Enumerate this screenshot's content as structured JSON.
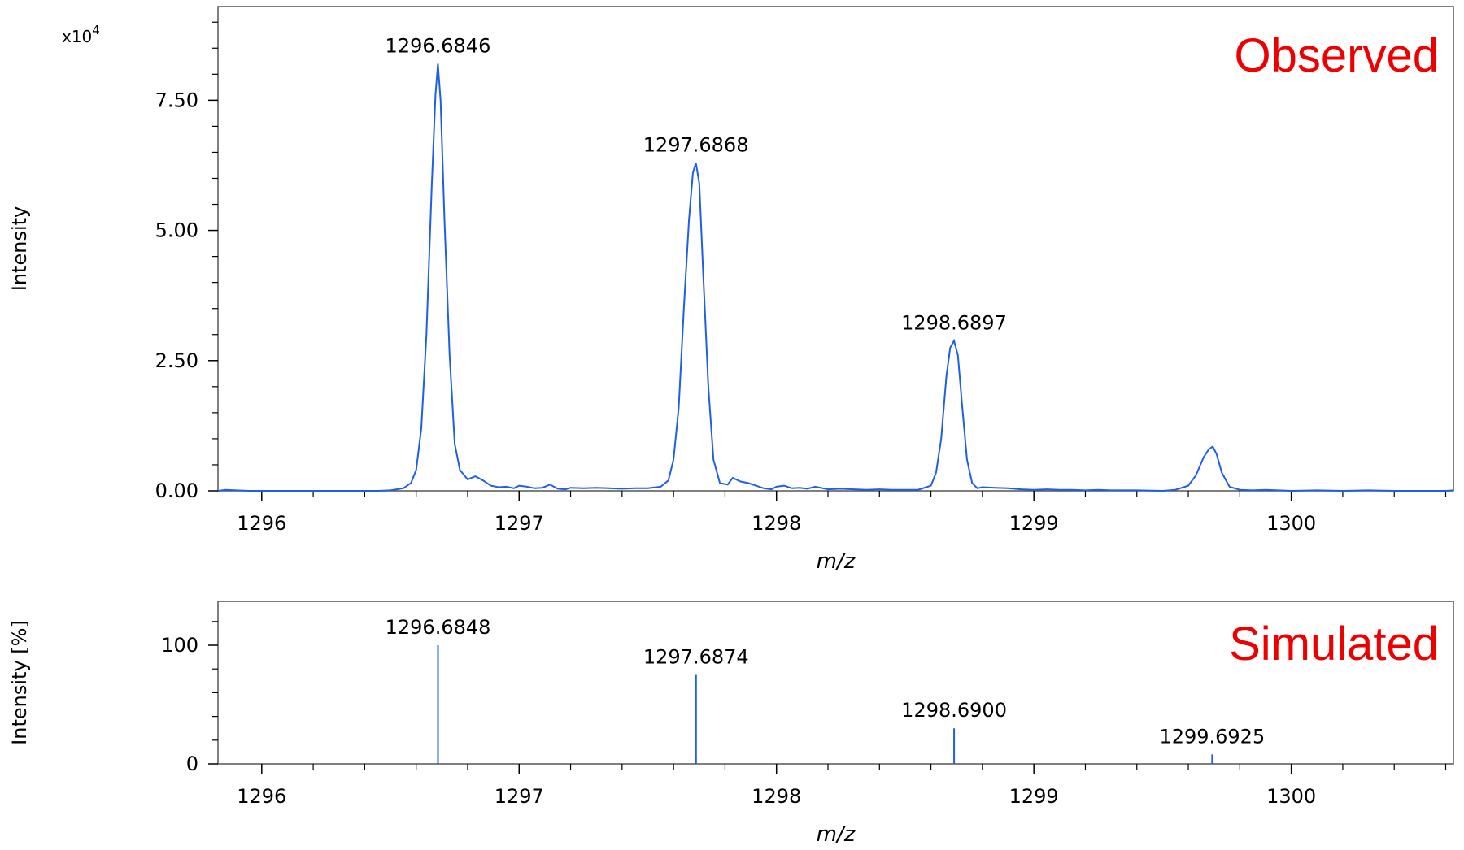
{
  "chart_data": [
    {
      "type": "line",
      "panel_label": "Observed",
      "xlabel": "m/z",
      "ylabel": "Intensity",
      "y_multiplier_label": "x10",
      "y_multiplier_exponent": "4",
      "xlim": [
        1295.83,
        1300.63
      ],
      "ylim": [
        0,
        9.3
      ],
      "x_ticks": [
        1296,
        1297,
        1298,
        1299,
        1300
      ],
      "x_tick_labels": [
        "1296",
        "1297",
        "1298",
        "1299",
        "1300"
      ],
      "y_ticks": [
        0,
        2.5,
        5.0,
        7.5
      ],
      "y_tick_labels": [
        "0.00",
        "2.50",
        "5.00",
        "7.50"
      ],
      "grid": false,
      "line_color": "#1f5fe6",
      "peak_labels": [
        {
          "x": 1296.6846,
          "y": 8.2,
          "text": "1296.6846"
        },
        {
          "x": 1297.6868,
          "y": 6.3,
          "text": "1297.6868"
        },
        {
          "x": 1298.6897,
          "y": 2.88,
          "text": "1298.6897"
        }
      ],
      "series": [
        {
          "x": [
            1295.83,
            1295.86,
            1295.9,
            1295.95,
            1296.0,
            1296.05,
            1296.1,
            1296.15,
            1296.2,
            1296.25,
            1296.3,
            1296.35,
            1296.4,
            1296.45,
            1296.5,
            1296.55,
            1296.58,
            1296.6,
            1296.62,
            1296.64,
            1296.66,
            1296.675,
            1296.6846,
            1296.695,
            1296.71,
            1296.73,
            1296.75,
            1296.77,
            1296.8,
            1296.83,
            1296.86,
            1296.89,
            1296.92,
            1296.95,
            1296.98,
            1297.0,
            1297.03,
            1297.06,
            1297.09,
            1297.12,
            1297.15,
            1297.18,
            1297.2,
            1297.25,
            1297.3,
            1297.35,
            1297.4,
            1297.45,
            1297.5,
            1297.55,
            1297.58,
            1297.6,
            1297.62,
            1297.64,
            1297.66,
            1297.675,
            1297.6868,
            1297.7,
            1297.715,
            1297.735,
            1297.755,
            1297.78,
            1297.81,
            1297.83,
            1297.86,
            1297.89,
            1297.92,
            1297.95,
            1297.98,
            1298.0,
            1298.03,
            1298.06,
            1298.09,
            1298.12,
            1298.15,
            1298.2,
            1298.25,
            1298.3,
            1298.35,
            1298.4,
            1298.45,
            1298.5,
            1298.55,
            1298.6,
            1298.62,
            1298.64,
            1298.66,
            1298.675,
            1298.6897,
            1298.705,
            1298.72,
            1298.74,
            1298.76,
            1298.78,
            1298.8,
            1298.85,
            1298.9,
            1298.95,
            1299.0,
            1299.05,
            1299.1,
            1299.15,
            1299.2,
            1299.25,
            1299.3,
            1299.4,
            1299.5,
            1299.55,
            1299.6,
            1299.63,
            1299.66,
            1299.68,
            1299.695,
            1299.71,
            1299.73,
            1299.76,
            1299.8,
            1299.85,
            1299.9,
            1300.0,
            1300.1,
            1300.2,
            1300.3,
            1300.4,
            1300.5,
            1300.6,
            1300.63
          ],
          "y": [
            0.0,
            0.02,
            0.01,
            0.0,
            0.0,
            0.0,
            0.0,
            0.0,
            0.0,
            0.0,
            0.0,
            0.0,
            0.0,
            0.0,
            0.01,
            0.05,
            0.15,
            0.4,
            1.2,
            3.0,
            5.8,
            7.6,
            8.2,
            7.5,
            5.2,
            2.6,
            0.9,
            0.4,
            0.22,
            0.28,
            0.2,
            0.1,
            0.07,
            0.08,
            0.05,
            0.1,
            0.08,
            0.05,
            0.06,
            0.12,
            0.04,
            0.03,
            0.06,
            0.05,
            0.06,
            0.05,
            0.04,
            0.05,
            0.05,
            0.08,
            0.2,
            0.6,
            1.6,
            3.5,
            5.2,
            6.1,
            6.3,
            5.9,
            4.2,
            2.0,
            0.6,
            0.15,
            0.12,
            0.25,
            0.18,
            0.15,
            0.1,
            0.05,
            0.03,
            0.08,
            0.1,
            0.05,
            0.06,
            0.04,
            0.08,
            0.03,
            0.04,
            0.03,
            0.02,
            0.03,
            0.02,
            0.02,
            0.02,
            0.1,
            0.35,
            1.0,
            2.2,
            2.75,
            2.88,
            2.6,
            1.7,
            0.6,
            0.15,
            0.05,
            0.07,
            0.06,
            0.05,
            0.03,
            0.02,
            0.03,
            0.02,
            0.02,
            0.01,
            0.02,
            0.01,
            0.01,
            0.0,
            0.02,
            0.1,
            0.3,
            0.65,
            0.8,
            0.85,
            0.7,
            0.35,
            0.08,
            0.02,
            0.01,
            0.02,
            0.0,
            0.01,
            0.0,
            0.01,
            0.0,
            0.0,
            0.0,
            0.01
          ]
        }
      ]
    },
    {
      "type": "bar",
      "panel_label": "Simulated",
      "xlabel": "m/z",
      "ylabel": "Intensity [%]",
      "xlim": [
        1295.83,
        1300.63
      ],
      "ylim": [
        0,
        137
      ],
      "x_ticks": [
        1296,
        1297,
        1298,
        1299,
        1300
      ],
      "x_tick_labels": [
        "1296",
        "1297",
        "1298",
        "1299",
        "1300"
      ],
      "y_ticks": [
        0,
        100
      ],
      "y_tick_labels": [
        "0",
        "100"
      ],
      "grid": false,
      "bar_color": "#1f5fe6",
      "x": [
        1296.6848,
        1297.6874,
        1298.69,
        1299.6925
      ],
      "values": [
        100,
        75,
        30,
        8
      ],
      "labels": [
        "1296.6848",
        "1297.6874",
        "1298.6900",
        "1299.6925"
      ]
    }
  ]
}
